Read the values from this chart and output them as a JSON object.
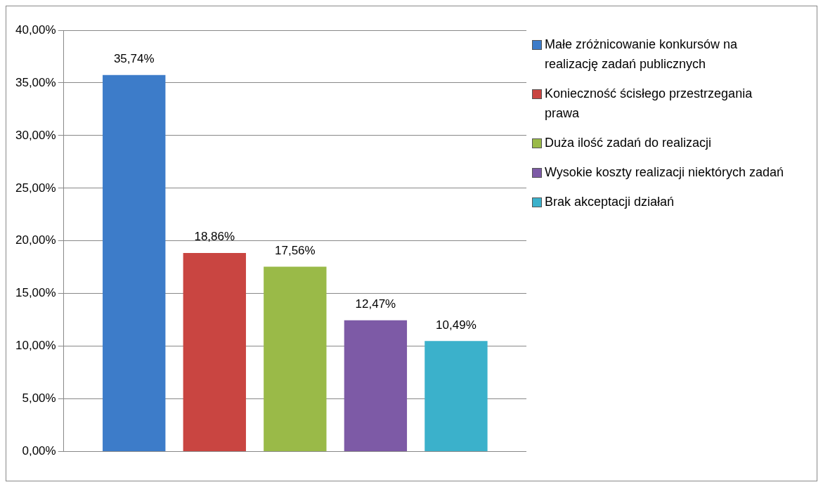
{
  "chart_data": {
    "type": "bar",
    "categories": [
      null
    ],
    "series": [
      {
        "name": "Małe zróżnicowanie konkursów na realizację zadań publicznych",
        "color": "#3d7cc9",
        "values": [
          35.74
        ],
        "value_labels": [
          "35,74%"
        ]
      },
      {
        "name": "Konieczność ścisłego przestrzegania prawa",
        "color": "#c94541",
        "values": [
          18.86
        ],
        "value_labels": [
          "18,86%"
        ]
      },
      {
        "name": "Duża ilość zadań do realizacji",
        "color": "#9aba48",
        "values": [
          17.56
        ],
        "value_labels": [
          "17,56%"
        ]
      },
      {
        "name": "Wysokie koszty realizacji niektórych zadań",
        "color": "#7d5aa6",
        "values": [
          12.47
        ],
        "value_labels": [
          "12,47%"
        ]
      },
      {
        "name": "Brak akceptacji działań",
        "color": "#3bb1cb",
        "values": [
          10.49
        ],
        "value_labels": [
          "10,49%"
        ]
      }
    ],
    "ylim": [
      0,
      40
    ],
    "yticks": [
      {
        "value": 0,
        "label": "0,00%"
      },
      {
        "value": 5,
        "label": "5,00%"
      },
      {
        "value": 10,
        "label": "10,00%"
      },
      {
        "value": 15,
        "label": "15,00%"
      },
      {
        "value": 20,
        "label": "20,00%"
      },
      {
        "value": 25,
        "label": "25,00%"
      },
      {
        "value": 30,
        "label": "30,00%"
      },
      {
        "value": 35,
        "label": "35,00%"
      },
      {
        "value": 40,
        "label": "40,00%"
      }
    ],
    "grid": "y",
    "legend": "right"
  }
}
